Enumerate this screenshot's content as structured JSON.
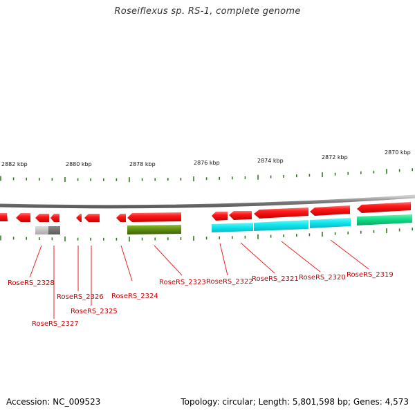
{
  "title": "Roseiflexus sp. RS-1, complete genome",
  "footer": {
    "accession": "Accession: NC_009523",
    "summary": "Topology: circular; Length: 5,801,598 bp; Genes: 4,573"
  },
  "colors": {
    "backbone": "#8a8a8a",
    "tick": "#2e7d1f",
    "gene_forward_red": "#ee1111",
    "label": "#cc0000",
    "leader": "#ee2222",
    "cyan_feature": "#11e6ee",
    "green_feature": "#11dd88",
    "olive_feature": "#5a8a10",
    "gray_feature": "#999999"
  },
  "scale": {
    "unit": "kbp",
    "labels": [
      "2882 kbp",
      "2880 kbp",
      "2878 kbp",
      "2876 kbp",
      "2874 kbp",
      "2872 kbp",
      "2870 kbp"
    ]
  },
  "genes": [
    {
      "label": "RoseRS_2328"
    },
    {
      "label": "RoseRS_2327"
    },
    {
      "label": "RoseRS_2326"
    },
    {
      "label": "RoseRS_2325"
    },
    {
      "label": "RoseRS_2324"
    },
    {
      "label": "RoseRS_2323"
    },
    {
      "label": "RoseRS_2322"
    },
    {
      "label": "RoseRS_2321"
    },
    {
      "label": "RoseRS_2320"
    },
    {
      "label": "RoseRS_2319"
    }
  ]
}
